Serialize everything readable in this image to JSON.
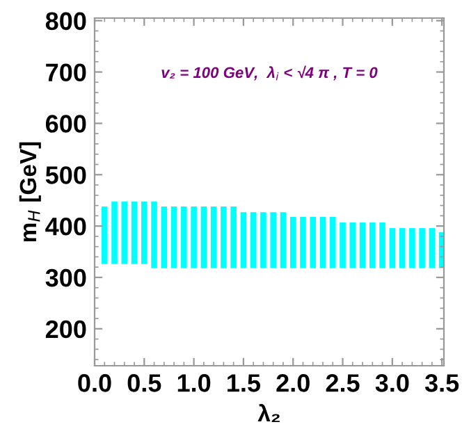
{
  "chart_data": {
    "type": "bar",
    "xlabel": "λ₂",
    "ylabel": "m$_{H}$ [GeV]",
    "annotations": [
      "v₂ = 100 GeV,  λ$_{i}$ < √4 π , T = 0"
    ],
    "x": [
      0.1,
      0.2,
      0.3,
      0.4,
      0.5,
      0.6,
      0.7,
      0.8,
      0.9,
      1.0,
      1.1,
      1.2,
      1.3,
      1.4,
      1.5,
      1.6,
      1.7,
      1.8,
      1.9,
      2.0,
      2.1,
      2.2,
      2.3,
      2.4,
      2.5,
      2.6,
      2.7,
      2.8,
      2.9,
      3.0,
      3.1,
      3.2,
      3.3,
      3.4,
      3.5
    ],
    "base": [
      326,
      326,
      326,
      326,
      326,
      318,
      318,
      318,
      318,
      318,
      318,
      318,
      318,
      318,
      318,
      318,
      318,
      318,
      318,
      318,
      318,
      318,
      318,
      318,
      318,
      318,
      318,
      318,
      318,
      318,
      318,
      318,
      318,
      318,
      318
    ],
    "values": [
      112,
      122,
      122,
      122,
      122,
      130,
      120,
      120,
      120,
      120,
      120,
      120,
      120,
      120,
      109,
      109,
      109,
      109,
      109,
      100,
      100,
      100,
      100,
      100,
      89,
      89,
      89,
      89,
      89,
      78,
      78,
      78,
      78,
      78,
      70
    ],
    "color": "#00ffff",
    "xlim": [
      0,
      3.52
    ],
    "ylim": [
      128,
      805
    ],
    "xticks": [
      {
        "value": 0,
        "label": "0.0"
      },
      {
        "value": 0.5,
        "label": "0.5"
      },
      {
        "value": 1,
        "label": "1.0"
      },
      {
        "value": 1.5,
        "label": "1.5"
      },
      {
        "value": 2,
        "label": "2.0"
      },
      {
        "value": 2.5,
        "label": "2.5"
      },
      {
        "value": 3,
        "label": "3.0"
      },
      {
        "value": 3.5,
        "label": "3.5"
      }
    ],
    "yticks": [
      200,
      300,
      400,
      500,
      600,
      700,
      800
    ],
    "grid": false,
    "legend": false
  }
}
